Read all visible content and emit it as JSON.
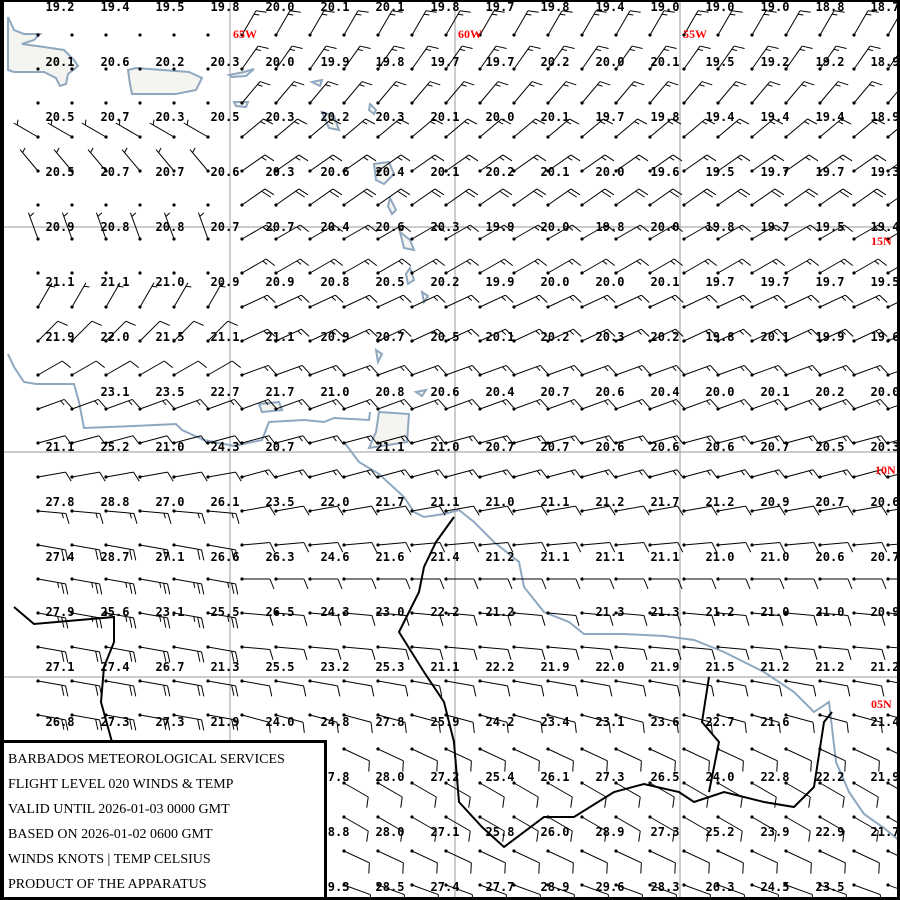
{
  "title_box": {
    "lines": [
      "BARBADOS METEOROLOGICAL SERVICES",
      "FLIGHT LEVEL 020 WINDS & TEMP",
      "VALID UNTIL 2026-01-03 0000 GMT",
      "BASED ON 2026-01-02 0600 GMT",
      "WINDS KNOTS | TEMP CELSIUS",
      "PRODUCT OF THE APPARATUS"
    ]
  },
  "grid_labels": {
    "lon": [
      "65W",
      "60W",
      "55W"
    ],
    "lat": [
      "15N",
      "10N",
      "05N"
    ]
  },
  "colors": {
    "coast": "#8fa8c0",
    "border": "#000000",
    "grid": "#999999",
    "labels": "#ff0000"
  },
  "temperatures": [
    [
      "19.2",
      "19.4",
      "19.5",
      "19.8",
      "20.0",
      "20.1",
      "20.1",
      "19.8",
      "19.7",
      "19.8",
      "19.4",
      "19.0",
      "19.0",
      "19.0",
      "18.8",
      "18.7"
    ],
    [
      "20.1",
      "20.6",
      "20.2",
      "20.3",
      "20.0",
      "19.9",
      "19.8",
      "19.7",
      "19.7",
      "20.2",
      "20.0",
      "20.1",
      "19.5",
      "19.2",
      "19.2",
      "18.9"
    ],
    [
      "20.5",
      "20.7",
      "20.3",
      "20.5",
      "20.3",
      "20.2",
      "20.3",
      "20.1",
      "20.0",
      "20.1",
      "19.7",
      "19.8",
      "19.4",
      "19.4",
      "19.4",
      "18.9"
    ],
    [
      "20.5",
      "20.7",
      "20.7",
      "20.6",
      "20.3",
      "20.6",
      "20.4",
      "20.1",
      "20.2",
      "20.1",
      "20.0",
      "19.6",
      "19.5",
      "19.7",
      "19.7",
      "19.3"
    ],
    [
      "20.9",
      "20.8",
      "20.8",
      "20.7",
      "20.7",
      "20.4",
      "20.6",
      "20.3",
      "19.9",
      "20.0",
      "19.8",
      "20.0",
      "19.8",
      "19.7",
      "19.5",
      "19.4"
    ],
    [
      "21.1",
      "21.1",
      "21.0",
      "20.9",
      "20.9",
      "20.8",
      "20.5",
      "20.2",
      "19.9",
      "20.0",
      "20.0",
      "20.1",
      "19.7",
      "19.7",
      "19.7",
      "19.5"
    ],
    [
      "21.9",
      "22.0",
      "21.5",
      "21.1",
      "21.1",
      "20.9",
      "20.7",
      "20.5",
      "20.1",
      "20.2",
      "20.3",
      "20.2",
      "19.8",
      "20.1",
      "19.9",
      "19.6"
    ],
    [
      null,
      "23.1",
      "23.5",
      "22.7",
      "21.7",
      "21.0",
      "20.8",
      "20.6",
      "20.4",
      "20.7",
      "20.6",
      "20.4",
      "20.0",
      "20.1",
      "20.2",
      "20.0"
    ],
    [
      "21.1",
      "25.2",
      "21.0",
      "24.3",
      "20.7",
      null,
      "21.1",
      "21.0",
      "20.7",
      "20.7",
      "20.6",
      "20.6",
      "20.6",
      "20.7",
      "20.5",
      "20.3"
    ],
    [
      "27.8",
      "28.8",
      "27.0",
      "26.1",
      "23.5",
      "22.0",
      "21.7",
      "21.1",
      "21.0",
      "21.1",
      "21.2",
      "21.7",
      "21.2",
      "20.9",
      "20.7",
      "20.6"
    ],
    [
      "27.4",
      "28.7",
      "27.1",
      "26.6",
      "26.3",
      "24.6",
      "21.6",
      "21.4",
      "21.2",
      "21.1",
      "21.1",
      "21.1",
      "21.0",
      "21.0",
      "20.6",
      "20.7"
    ],
    [
      "27.9",
      "25.6",
      "23.1",
      "25.5",
      "26.5",
      "24.3",
      "23.0",
      "22.2",
      "21.2",
      null,
      "21.3",
      "21.3",
      "21.2",
      "21.0",
      "21.0",
      "20.9"
    ],
    [
      "27.1",
      "27.4",
      "26.7",
      "21.3",
      "25.5",
      "23.2",
      "25.3",
      "21.1",
      "22.2",
      "21.9",
      "22.0",
      "21.9",
      "21.5",
      "21.2",
      "21.2",
      "21.2"
    ],
    [
      "26.8",
      "27.3",
      "27.3",
      "21.9",
      "24.0",
      "24.8",
      "27.8",
      "25.9",
      "24.2",
      "23.4",
      "23.1",
      "23.6",
      "22.7",
      "21.6",
      null,
      "21.4"
    ],
    [
      null,
      null,
      null,
      null,
      null,
      "27.8",
      "28.0",
      "27.2",
      "25.4",
      "26.1",
      "27.3",
      "26.5",
      "24.0",
      "22.8",
      "22.2",
      "21.9"
    ],
    [
      null,
      null,
      null,
      null,
      null,
      "28.8",
      "28.0",
      "27.1",
      "25.8",
      "26.0",
      "28.9",
      "27.3",
      "25.2",
      "23.9",
      "22.9",
      "21.7"
    ],
    [
      null,
      null,
      null,
      null,
      null,
      "29.3",
      "28.5",
      "27.4",
      "27.7",
      "28.9",
      "29.6",
      "28.3",
      "26.3",
      "24.5",
      "23.5",
      null
    ]
  ],
  "wind_rows": [
    {
      "west_dir": 0,
      "west_kt": 0,
      "east_dir": 30,
      "east_kt": 15
    },
    {
      "west_dir": 0,
      "west_kt": 0,
      "east_dir": 35,
      "east_kt": 15
    },
    {
      "west_dir": 0,
      "west_kt": 0,
      "east_dir": 40,
      "east_kt": 15
    },
    {
      "west_dir": 300,
      "west_kt": 5,
      "east_dir": 50,
      "east_kt": 15
    },
    {
      "west_dir": 320,
      "west_kt": 5,
      "east_dir": 55,
      "east_kt": 15
    },
    {
      "west_dir": 0,
      "west_kt": 0,
      "east_dir": 55,
      "east_kt": 20
    },
    {
      "west_dir": 340,
      "west_kt": 5,
      "east_dir": 60,
      "east_kt": 15
    },
    {
      "west_dir": 0,
      "west_kt": 0,
      "east_dir": 60,
      "east_kt": 15
    },
    {
      "west_dir": 30,
      "west_kt": 5,
      "east_dir": 65,
      "east_kt": 15
    },
    {
      "west_dir": 45,
      "west_kt": 10,
      "east_dir": 65,
      "east_kt": 15
    },
    {
      "west_dir": 60,
      "west_kt": 10,
      "east_dir": 70,
      "east_kt": 15
    },
    {
      "west_dir": 70,
      "west_kt": 15,
      "east_dir": 70,
      "east_kt": 15
    },
    {
      "west_dir": 75,
      "west_kt": 10,
      "east_dir": 75,
      "east_kt": 15
    },
    {
      "west_dir": 80,
      "west_kt": 10,
      "east_dir": 75,
      "east_kt": 15
    },
    {
      "west_dir": 95,
      "west_kt": 15,
      "east_dir": 80,
      "east_kt": 10
    },
    {
      "west_dir": 100,
      "west_kt": 20,
      "east_dir": 85,
      "east_kt": 10
    },
    {
      "west_dir": 100,
      "west_kt": 25,
      "east_dir": 90,
      "east_kt": 10
    },
    {
      "west_dir": 100,
      "west_kt": 25,
      "east_dir": 95,
      "east_kt": 10
    },
    {
      "west_dir": 100,
      "west_kt": 20,
      "east_dir": 95,
      "east_kt": 10
    },
    {
      "west_dir": 100,
      "west_kt": 20,
      "east_dir": 100,
      "east_kt": 10
    },
    {
      "west_dir": 100,
      "west_kt": 20,
      "east_dir": 105,
      "east_kt": 10
    },
    {
      "west_dir": 105,
      "west_kt": 15,
      "east_dir": 115,
      "east_kt": 10
    },
    {
      "west_dir": 110,
      "west_kt": 15,
      "east_dir": 120,
      "east_kt": 10
    },
    {
      "west_dir": 110,
      "west_kt": 15,
      "east_dir": 120,
      "east_kt": 10
    },
    {
      "west_dir": 110,
      "west_kt": 15,
      "east_dir": 115,
      "east_kt": 10
    },
    {
      "west_dir": 105,
      "west_kt": 15,
      "east_dir": 110,
      "east_kt": 10
    }
  ]
}
